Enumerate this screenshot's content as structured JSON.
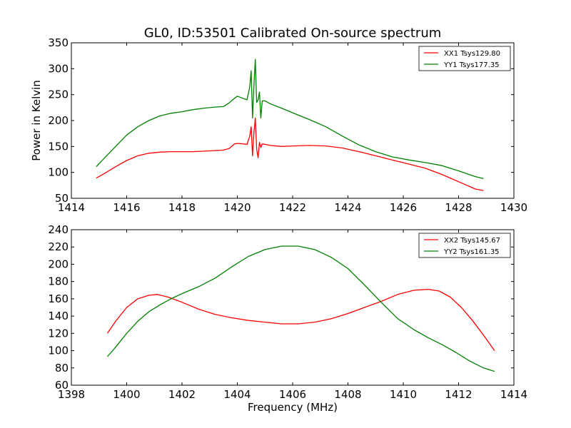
{
  "chart_data": [
    {
      "type": "line",
      "title": "GL0, ID:53501 Calibrated On-source spectrum",
      "xlabel": "",
      "ylabel": "Power in Kelvin",
      "xlim": [
        1414,
        1430
      ],
      "ylim": [
        50,
        350
      ],
      "xticks": [
        1414,
        1416,
        1418,
        1420,
        1422,
        1424,
        1426,
        1428,
        1430
      ],
      "yticks": [
        50,
        100,
        150,
        200,
        250,
        300,
        350
      ],
      "legend_position": "top-right",
      "series": [
        {
          "name": "XX1 Tsys129.80",
          "color": "#ff0000",
          "x": [
            1414.9,
            1415.2,
            1415.6,
            1416.0,
            1416.4,
            1416.8,
            1417.2,
            1417.6,
            1418.0,
            1418.4,
            1418.8,
            1419.2,
            1419.5,
            1419.7,
            1419.9,
            1420.0,
            1420.2,
            1420.35,
            1420.45,
            1420.5,
            1420.55,
            1420.6,
            1420.65,
            1420.7,
            1420.75,
            1420.8,
            1420.85,
            1420.9,
            1421.0,
            1421.2,
            1421.6,
            1422.0,
            1422.6,
            1423.2,
            1423.8,
            1424.4,
            1425.0,
            1425.6,
            1426.2,
            1426.8,
            1427.4,
            1428.0,
            1428.6,
            1428.9
          ],
          "y": [
            89,
            98,
            111,
            123,
            132,
            137,
            139,
            140,
            140,
            140,
            141,
            142,
            143,
            146,
            155,
            156,
            155,
            154,
            170,
            188,
            132,
            175,
            205,
            145,
            128,
            158,
            148,
            155,
            154,
            152,
            150,
            151,
            152,
            151,
            147,
            140,
            132,
            124,
            116,
            108,
            96,
            82,
            68,
            65
          ]
        },
        {
          "name": "YY1 Tsys177.35",
          "color": "#008000",
          "x": [
            1414.9,
            1415.2,
            1415.6,
            1416.0,
            1416.4,
            1416.8,
            1417.2,
            1417.6,
            1418.0,
            1418.4,
            1418.8,
            1419.2,
            1419.5,
            1419.7,
            1419.9,
            1420.0,
            1420.2,
            1420.35,
            1420.45,
            1420.5,
            1420.55,
            1420.6,
            1420.65,
            1420.7,
            1420.75,
            1420.8,
            1420.85,
            1420.9,
            1421.0,
            1421.2,
            1421.6,
            1422.0,
            1422.6,
            1423.2,
            1423.8,
            1424.4,
            1425.0,
            1425.6,
            1426.2,
            1426.8,
            1427.4,
            1428.0,
            1428.6,
            1428.9
          ],
          "y": [
            111,
            128,
            150,
            172,
            188,
            200,
            209,
            214,
            217,
            221,
            224,
            226,
            227,
            234,
            243,
            247,
            243,
            240,
            265,
            296,
            205,
            265,
            318,
            235,
            240,
            255,
            205,
            238,
            238,
            232,
            224,
            215,
            202,
            188,
            170,
            153,
            140,
            130,
            124,
            119,
            113,
            103,
            92,
            88
          ]
        }
      ]
    },
    {
      "type": "line",
      "title": "",
      "xlabel": "Frequency (MHz)",
      "ylabel": "",
      "xlim": [
        1398,
        1414
      ],
      "ylim": [
        60,
        240
      ],
      "xticks": [
        1398,
        1400,
        1402,
        1404,
        1406,
        1408,
        1410,
        1412,
        1414
      ],
      "yticks": [
        60,
        80,
        100,
        120,
        140,
        160,
        180,
        200,
        220,
        240
      ],
      "legend_position": "top-right",
      "series": [
        {
          "name": "XX2 Tsys145.67",
          "color": "#ff0000",
          "x": [
            1399.3,
            1399.6,
            1400.0,
            1400.4,
            1400.8,
            1401.1,
            1401.5,
            1402.0,
            1402.6,
            1403.2,
            1403.8,
            1404.4,
            1405.0,
            1405.6,
            1406.2,
            1406.8,
            1407.4,
            1408.0,
            1408.6,
            1409.2,
            1409.8,
            1410.4,
            1410.9,
            1411.3,
            1411.7,
            1412.1,
            1412.5,
            1412.9,
            1413.3
          ],
          "y": [
            120,
            134,
            150,
            160,
            164,
            165,
            162,
            156,
            148,
            142,
            138,
            135,
            133,
            131,
            131,
            133,
            137,
            143,
            150,
            157,
            165,
            170,
            171,
            169,
            162,
            150,
            135,
            118,
            100
          ]
        },
        {
          "name": "YY2 Tsys161.35",
          "color": "#008000",
          "x": [
            1399.3,
            1399.6,
            1400.0,
            1400.4,
            1400.8,
            1401.2,
            1401.6,
            1402.0,
            1402.6,
            1403.2,
            1403.8,
            1404.4,
            1405.0,
            1405.6,
            1406.2,
            1406.8,
            1407.4,
            1408.0,
            1408.6,
            1409.2,
            1409.8,
            1410.4,
            1410.9,
            1411.4,
            1411.9,
            1412.4,
            1412.9,
            1413.3
          ],
          "y": [
            93,
            104,
            120,
            134,
            145,
            153,
            160,
            166,
            174,
            184,
            197,
            209,
            217,
            221,
            221,
            217,
            208,
            195,
            176,
            156,
            137,
            124,
            115,
            107,
            98,
            88,
            80,
            76
          ]
        }
      ]
    }
  ]
}
